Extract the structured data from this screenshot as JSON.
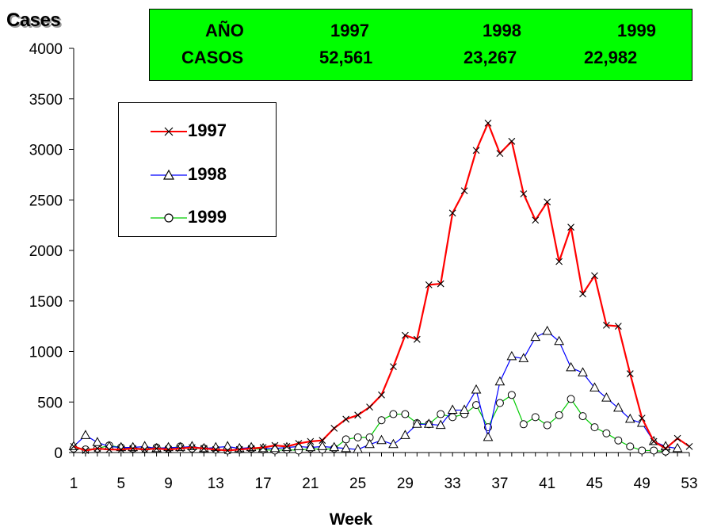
{
  "header": {
    "y_axis_title": "Cases",
    "x_axis_title": "Week"
  },
  "stats_table": {
    "row1": [
      "AÑO",
      "1997",
      "1998",
      "1999"
    ],
    "row2": [
      "CASOS",
      "52,561",
      "23,267",
      "22,982"
    ],
    "background": "#00ff00"
  },
  "legend": {
    "items": [
      {
        "label": "1997",
        "color": "#ff0000",
        "marker": "x"
      },
      {
        "label": "1998",
        "color": "#0000ff",
        "marker": "triangle"
      },
      {
        "label": "1999",
        "color": "#00cc00",
        "marker": "circle"
      }
    ]
  },
  "chart_data": {
    "type": "line",
    "xlabel": "Week",
    "ylabel": "Cases",
    "xlim": [
      1,
      53
    ],
    "ylim": [
      0,
      4000
    ],
    "x_ticks": [
      1,
      5,
      9,
      13,
      17,
      21,
      25,
      29,
      33,
      37,
      41,
      45,
      49,
      53
    ],
    "y_ticks": [
      0,
      500,
      1000,
      1500,
      2000,
      2500,
      3000,
      3500,
      4000
    ],
    "x": [
      1,
      2,
      3,
      4,
      5,
      6,
      7,
      8,
      9,
      10,
      11,
      12,
      13,
      14,
      15,
      16,
      17,
      18,
      19,
      20,
      21,
      22,
      23,
      24,
      25,
      26,
      27,
      28,
      29,
      30,
      31,
      32,
      33,
      34,
      35,
      36,
      37,
      38,
      39,
      40,
      41,
      42,
      43,
      44,
      45,
      46,
      47,
      48,
      49,
      50,
      51,
      52,
      53
    ],
    "series": [
      {
        "name": "1997",
        "color": "#ff0000",
        "marker": "x",
        "values": [
          60,
          20,
          40,
          30,
          30,
          40,
          30,
          40,
          30,
          40,
          50,
          40,
          30,
          20,
          30,
          40,
          50,
          70,
          60,
          90,
          110,
          120,
          240,
          330,
          370,
          450,
          570,
          850,
          1160,
          1120,
          1660,
          1670,
          2370,
          2590,
          2990,
          3260,
          2960,
          3080,
          2560,
          2300,
          2480,
          1890,
          2230,
          1570,
          1750,
          1260,
          1250,
          780,
          340,
          110,
          40,
          140,
          60
        ]
      },
      {
        "name": "1998",
        "color": "#0000ff",
        "marker": "triangle",
        "values": [
          60,
          170,
          100,
          60,
          50,
          50,
          60,
          40,
          50,
          50,
          60,
          40,
          50,
          60,
          40,
          50,
          40,
          40,
          50,
          60,
          50,
          60,
          50,
          40,
          30,
          80,
          120,
          80,
          170,
          280,
          280,
          270,
          420,
          420,
          620,
          150,
          700,
          950,
          930,
          1140,
          1200,
          1100,
          840,
          790,
          640,
          540,
          440,
          330,
          290,
          110,
          60,
          40,
          null
        ]
      },
      {
        "name": "1999",
        "color": "#00cc00",
        "marker": "circle",
        "values": [
          40,
          30,
          40,
          70,
          50,
          40,
          40,
          50,
          40,
          60,
          40,
          40,
          30,
          20,
          30,
          40,
          30,
          20,
          30,
          20,
          40,
          30,
          40,
          130,
          150,
          150,
          320,
          380,
          380,
          290,
          280,
          380,
          350,
          380,
          470,
          250,
          490,
          570,
          280,
          350,
          270,
          370,
          530,
          360,
          250,
          190,
          120,
          60,
          20,
          20,
          10,
          null,
          null
        ]
      }
    ]
  }
}
